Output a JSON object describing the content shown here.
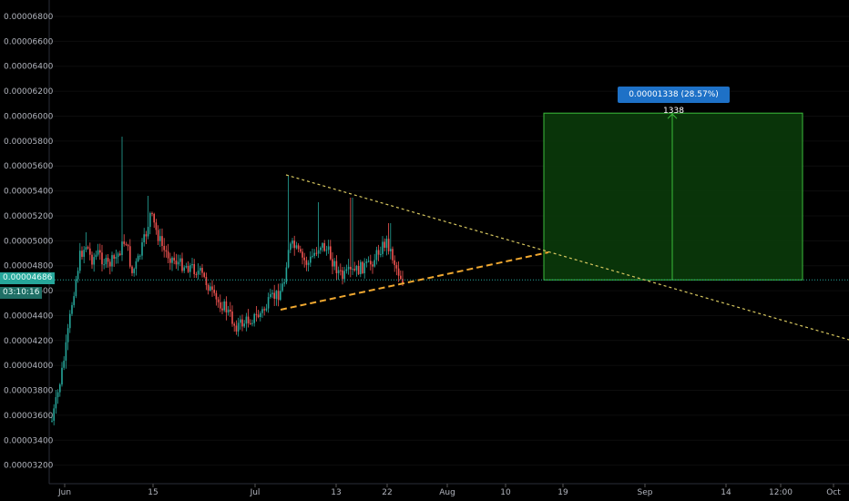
{
  "y_axis": {
    "ticks": [
      "0.00006800",
      "0.00006600",
      "0.00006400",
      "0.00006200",
      "0.00006000",
      "0.00005800",
      "0.00005600",
      "0.00005400",
      "0.00005200",
      "0.00005000",
      "0.00004800",
      "0.00004600",
      "0.00004400",
      "0.00004200",
      "0.00004000",
      "0.00003800",
      "0.00003600",
      "0.00003400",
      "0.00003200"
    ],
    "range": [
      3.1e-05,
      6.93e-05
    ]
  },
  "x_axis": {
    "ticks": [
      "Jun",
      "15",
      "Jul",
      "13",
      "22",
      "Aug",
      "10",
      "19",
      "Sep",
      "14",
      "12:00",
      "Oct"
    ]
  },
  "price_badge": "0.00004686",
  "timer_badge": "03:10:16",
  "last_price": 4.686e-05,
  "measure_tool": {
    "label": "0.00001338 (28.57%) 1338",
    "from": 4.686e-05,
    "to": 6.024e-05,
    "fill": "#0b3d0b",
    "stroke": "#3cbe3c"
  },
  "colors": {
    "up": "#26a69a",
    "down": "#ef5350",
    "trendline": "#f0a830",
    "triangle_upper": "#d8c860",
    "price_line": "#26a69a"
  }
}
